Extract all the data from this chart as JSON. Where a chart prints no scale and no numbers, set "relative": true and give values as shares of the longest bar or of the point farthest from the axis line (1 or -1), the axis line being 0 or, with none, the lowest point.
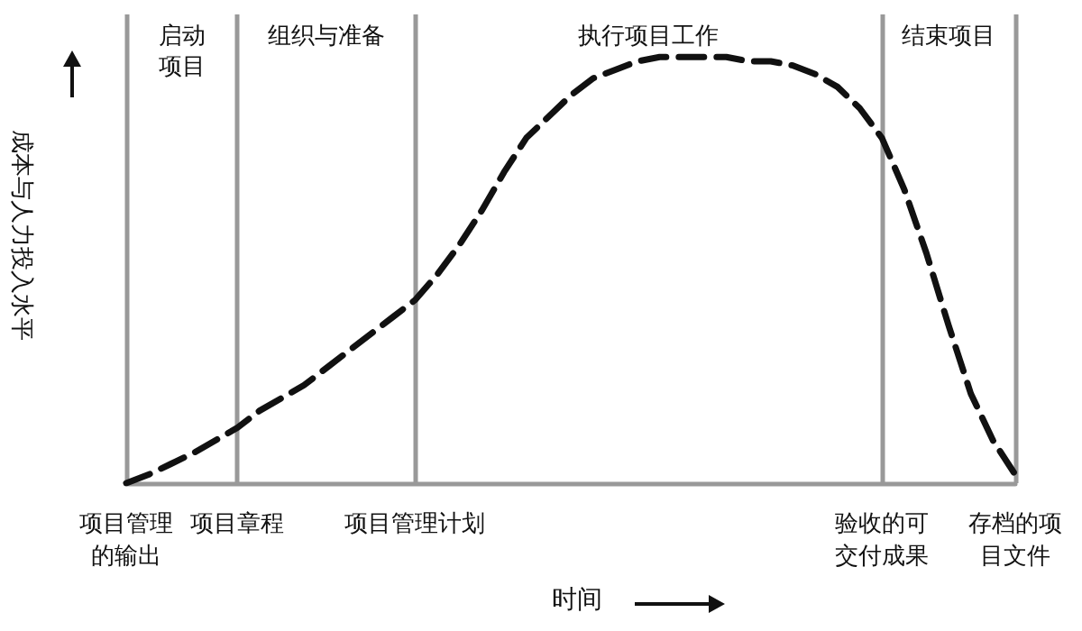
{
  "chart_data": {
    "type": "line",
    "relative": true,
    "xlabel": "时间",
    "ylabel": "成本与人力投入水平",
    "categories": [
      "项目管理的输出",
      null,
      null,
      null,
      null,
      "项目章程",
      null,
      null,
      null,
      null,
      null,
      null,
      null,
      "项目管理计划",
      null,
      null,
      null,
      null,
      null,
      null,
      null,
      null,
      null,
      null,
      null,
      null,
      null,
      null,
      null,
      null,
      null,
      null,
      null,
      null,
      "验收的可交付成果",
      null,
      null,
      null,
      null,
      null,
      "存档的项目文件"
    ],
    "series": [
      {
        "color": "#111111",
        "values": [
          0,
          0.02,
          0.045,
          0.07,
          0.1,
          0.13,
          0.17,
          0.2,
          0.23,
          0.27,
          0.31,
          0.35,
          0.39,
          0.43,
          0.49,
          0.56,
          0.64,
          0.73,
          0.81,
          0.86,
          0.91,
          0.95,
          0.97,
          0.99,
          1,
          1,
          1,
          1,
          0.99,
          0.99,
          0.98,
          0.96,
          0.93,
          0.88,
          0.81,
          0.69,
          0.54,
          0.37,
          0.21,
          0.1,
          0.02
        ]
      }
    ],
    "line_style": "dashed",
    "marker": "none",
    "grid": "x",
    "annotations": [
      "启动项目",
      "组织与准备",
      "执行项目工作",
      "结束项目"
    ]
  }
}
